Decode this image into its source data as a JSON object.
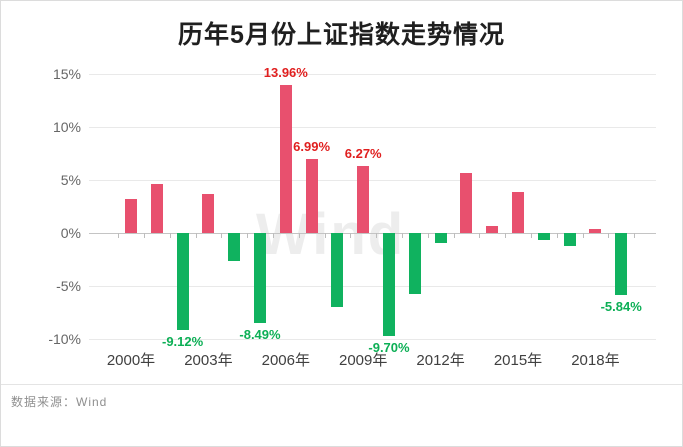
{
  "chart_data": {
    "type": "bar",
    "title": "历年5月份上证指数走势情况",
    "x": [
      2000,
      2001,
      2002,
      2003,
      2004,
      2005,
      2006,
      2007,
      2008,
      2009,
      2010,
      2011,
      2012,
      2013,
      2014,
      2015,
      2016,
      2017,
      2018,
      2019
    ],
    "values": [
      3.2,
      4.6,
      -9.12,
      3.7,
      -2.7,
      -8.49,
      13.96,
      6.99,
      -7.0,
      6.27,
      -9.7,
      -5.8,
      -1.0,
      5.6,
      0.6,
      3.9,
      -0.7,
      -1.2,
      0.4,
      -5.84
    ],
    "data_labels": {
      "2002": "-9.12%",
      "2005": "-8.49%",
      "2006": "13.96%",
      "2007": "6.99%",
      "2009": "6.27%",
      "2010": "-9.70%",
      "2019": "-5.84%"
    },
    "yticks": [
      15,
      10,
      5,
      0,
      -5,
      -10
    ],
    "ytick_labels": [
      "15%",
      "10%",
      "5%",
      "0%",
      "-5%",
      "-10%"
    ],
    "xtick_labels": [
      "2000年",
      "2003年",
      "2006年",
      "2009年",
      "2012年",
      "2015年",
      "2018年"
    ],
    "xtick_every": 3,
    "ylim": [
      -12,
      16.4
    ],
    "grid": true,
    "legend": "none",
    "colors": {
      "positive_bar": "#e8506e",
      "negative_bar": "#10b25f",
      "positive_label": "#e01f1f",
      "negative_label": "#0caf55",
      "axis_text": "#666666",
      "gridline": "#e9e9e9"
    },
    "watermark": "Wind",
    "source": "数据来源：Wind"
  }
}
